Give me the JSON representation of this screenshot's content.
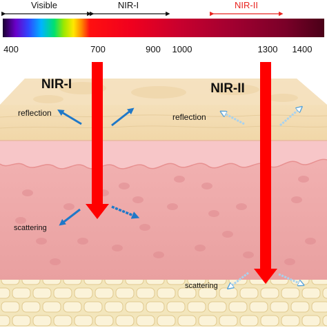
{
  "bands": {
    "visible": "Visible",
    "nir1": "NIR-I",
    "nir2": "NIR-II"
  },
  "wavelength_ticks": [
    "400",
    "700",
    "900",
    "1000",
    "1300",
    "1400"
  ],
  "labels": {
    "nir1_title": "NIR-I",
    "nir2_title": "NIR-II",
    "reflection_left": "reflection",
    "reflection_right": "reflection",
    "scattering_left": "scattering",
    "scattering_right": "scattering"
  },
  "colors": {
    "nir2_bracket": "#e8231e",
    "beam": "#ff0000",
    "scatter_solid": "#1f78c8",
    "scatter_light": "#a9d2ee",
    "epidermis": "#f6e2bf",
    "dermis": "#eea6a6",
    "hypodermis": "#f2e3b3"
  }
}
